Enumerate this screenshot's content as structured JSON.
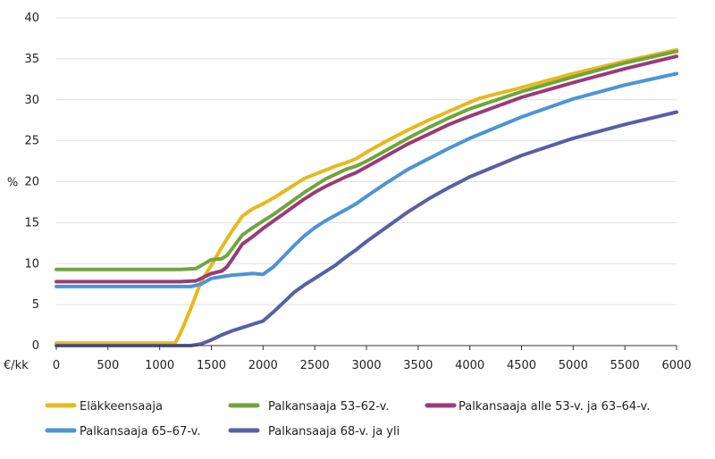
{
  "chart_data": {
    "type": "line",
    "ylabel": "%",
    "xlabel": "€/kk",
    "xlim": [
      0,
      6000
    ],
    "ylim": [
      0,
      40
    ],
    "xticks": [
      0,
      500,
      1000,
      1500,
      2000,
      2500,
      3000,
      3500,
      4000,
      4500,
      5000,
      5500,
      6000
    ],
    "xtick_labels": [
      "0",
      "500",
      "1000",
      "1500",
      "2000",
      "2500",
      "3000",
      "3500",
      "4000",
      "4500",
      "5000",
      "5500",
      "6000"
    ],
    "yticks": [
      0,
      5,
      10,
      15,
      20,
      25,
      30,
      35,
      40
    ],
    "ytick_labels": [
      "0",
      "5",
      "10",
      "15",
      "20",
      "25",
      "30",
      "35",
      "40"
    ],
    "grid": "horizontal",
    "legend_position": "bottom",
    "series": [
      {
        "name": "Eläkkeensaaja",
        "color": "#e8b81c",
        "x": [
          0,
          1100,
          1150,
          1200,
          1300,
          1400,
          1500,
          1600,
          1700,
          1800,
          1900,
          2000,
          2100,
          2200,
          2300,
          2400,
          2500,
          2600,
          2700,
          2800,
          2900,
          3000,
          3200,
          3400,
          3600,
          3800,
          4000,
          4100,
          4500,
          5000,
          5500,
          6000
        ],
        "y": [
          0.3,
          0.3,
          0.3,
          1.5,
          4.5,
          7.8,
          9.8,
          12.0,
          14.0,
          15.8,
          16.7,
          17.3,
          18.0,
          18.8,
          19.6,
          20.4,
          20.9,
          21.4,
          21.9,
          22.3,
          22.8,
          23.6,
          25.0,
          26.3,
          27.5,
          28.6,
          29.7,
          30.2,
          31.5,
          33.2,
          34.7,
          36.1
        ]
      },
      {
        "name": "Palkansaaja 53–62-v.",
        "color": "#6fa63c",
        "x": [
          0,
          1200,
          1350,
          1500,
          1600,
          1650,
          1700,
          1800,
          1900,
          2000,
          2100,
          2200,
          2300,
          2400,
          2500,
          2600,
          2700,
          2800,
          2900,
          3000,
          3200,
          3400,
          3600,
          3800,
          4000,
          4500,
          5000,
          5500,
          6000
        ],
        "y": [
          9.3,
          9.3,
          9.4,
          10.5,
          10.6,
          11.0,
          11.8,
          13.5,
          14.4,
          15.2,
          16.0,
          16.9,
          17.8,
          18.7,
          19.5,
          20.3,
          20.9,
          21.5,
          21.9,
          22.5,
          23.9,
          25.3,
          26.6,
          27.8,
          28.9,
          31.0,
          32.8,
          34.5,
          35.9
        ]
      },
      {
        "name": "Palkansaaja alle 53-v. ja 63–64-v.",
        "color": "#9b3a7a",
        "x": [
          0,
          1200,
          1350,
          1500,
          1600,
          1650,
          1700,
          1800,
          1900,
          2000,
          2100,
          2200,
          2300,
          2400,
          2500,
          2600,
          2700,
          2800,
          2900,
          3000,
          3200,
          3400,
          3600,
          3800,
          4000,
          4500,
          5000,
          5500,
          6000
        ],
        "y": [
          7.8,
          7.8,
          7.9,
          8.8,
          9.1,
          9.6,
          10.5,
          12.4,
          13.3,
          14.3,
          15.2,
          16.1,
          17.0,
          17.9,
          18.7,
          19.4,
          20.0,
          20.6,
          21.1,
          21.8,
          23.2,
          24.6,
          25.8,
          27.0,
          28.0,
          30.3,
          32.1,
          33.8,
          35.3
        ]
      },
      {
        "name": "Palkansaaja 65–67-v.",
        "color": "#4d94d6",
        "x": [
          0,
          1300,
          1400,
          1500,
          1600,
          1700,
          1800,
          1900,
          2000,
          2100,
          2200,
          2300,
          2400,
          2500,
          2600,
          2700,
          2800,
          2900,
          3000,
          3200,
          3400,
          3600,
          3800,
          4000,
          4500,
          5000,
          5500,
          6000
        ],
        "y": [
          7.2,
          7.2,
          7.5,
          8.2,
          8.4,
          8.6,
          8.7,
          8.8,
          8.7,
          9.6,
          10.9,
          12.2,
          13.4,
          14.4,
          15.2,
          15.9,
          16.6,
          17.3,
          18.2,
          19.9,
          21.5,
          22.8,
          24.1,
          25.3,
          27.9,
          30.1,
          31.8,
          33.2
        ]
      },
      {
        "name": "Palkansaaja 68-v. ja yli",
        "color": "#5b5ea6",
        "x": [
          0,
          1300,
          1400,
          1500,
          1600,
          1700,
          1800,
          1900,
          2000,
          2100,
          2200,
          2300,
          2400,
          2500,
          2600,
          2700,
          2800,
          2900,
          3000,
          3200,
          3400,
          3600,
          3800,
          4000,
          4500,
          5000,
          5500,
          6000
        ],
        "y": [
          0.0,
          0.0,
          0.2,
          0.7,
          1.3,
          1.8,
          2.2,
          2.6,
          3.0,
          4.1,
          5.3,
          6.5,
          7.4,
          8.2,
          9.0,
          9.8,
          10.8,
          11.7,
          12.7,
          14.5,
          16.3,
          17.9,
          19.3,
          20.6,
          23.2,
          25.3,
          27.0,
          28.5
        ]
      }
    ]
  }
}
